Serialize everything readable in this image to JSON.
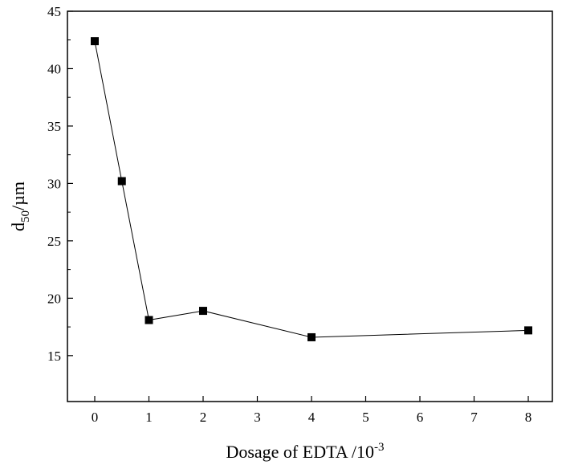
{
  "chart_data": {
    "type": "line",
    "title": "",
    "xlabel": {
      "text": "Dosage of EDTA  /10",
      "sup": "-3"
    },
    "ylabel": {
      "text": "d",
      "sub": "50",
      "unit": "/µm"
    },
    "x_ticks": [
      "0",
      "1",
      "2",
      "3",
      "4",
      "5",
      "6",
      "7",
      "8"
    ],
    "y_ticks": [
      "15",
      "20",
      "25",
      "30",
      "35",
      "40",
      "45"
    ],
    "ylim": [
      11,
      45
    ],
    "grid": false,
    "legend": "none",
    "colors": {
      "line": "#000000",
      "marker": "#000000",
      "axes": "#000000"
    },
    "series": [
      {
        "x_positions": [
          0,
          0.5,
          1,
          2,
          4,
          8
        ],
        "y": [
          42.4,
          30.2,
          18.1,
          18.9,
          16.6,
          17.2
        ],
        "marker": "square"
      }
    ]
  }
}
